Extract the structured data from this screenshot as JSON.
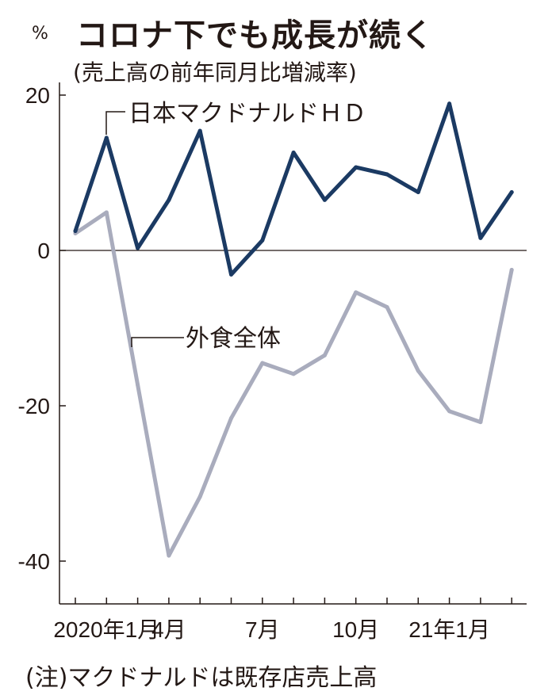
{
  "header": {
    "unit": "%",
    "title": "コロナ下でも成長が続く",
    "subtitle": "(売上高の前年同月比増減率)"
  },
  "footer": {
    "note": "(注)マクドナルドは既存店売上高"
  },
  "colors": {
    "mcdonalds": "#1b3a63",
    "industry": "#a9acbd",
    "axis": "#231815"
  },
  "chart_data": {
    "type": "line",
    "title": "コロナ下でも成長が続く",
    "subtitle": "(売上高の前年同月比増減率)",
    "ylabel": "%",
    "ylim": [
      -45,
      22
    ],
    "yticks": [
      20,
      0,
      -20,
      -40
    ],
    "ytick_labels": [
      "20",
      "0",
      "-20",
      "-40"
    ],
    "x": [
      "2020-01",
      "2020-02",
      "2020-03",
      "2020-04",
      "2020-05",
      "2020-06",
      "2020-07",
      "2020-08",
      "2020-09",
      "2020-10",
      "2020-11",
      "2020-12",
      "2021-01",
      "2021-02",
      "2021-03"
    ],
    "xtick_labels": [
      {
        "text": "2020年1月",
        "index": 1
      },
      {
        "text": "4月",
        "index": 3
      },
      {
        "text": "7月",
        "index": 6
      },
      {
        "text": "10月",
        "index": 9
      },
      {
        "text": "21年1月",
        "index": 12
      }
    ],
    "series": [
      {
        "name": "日本マクドナルドＨＤ",
        "color": "#1b3a63",
        "values": [
          2.5,
          14.5,
          0.3,
          6.5,
          15.4,
          -3.1,
          1.3,
          12.6,
          6.5,
          10.7,
          9.8,
          7.5,
          18.9,
          1.6,
          7.5
        ]
      },
      {
        "name": "外食全体",
        "color": "#a9acbd",
        "values": [
          2.2,
          4.9,
          -17.3,
          -39.3,
          -31.7,
          -21.6,
          -14.5,
          -15.9,
          -13.5,
          -5.4,
          -7.3,
          -15.5,
          -20.7,
          -22.1,
          -2.5
        ]
      }
    ]
  }
}
